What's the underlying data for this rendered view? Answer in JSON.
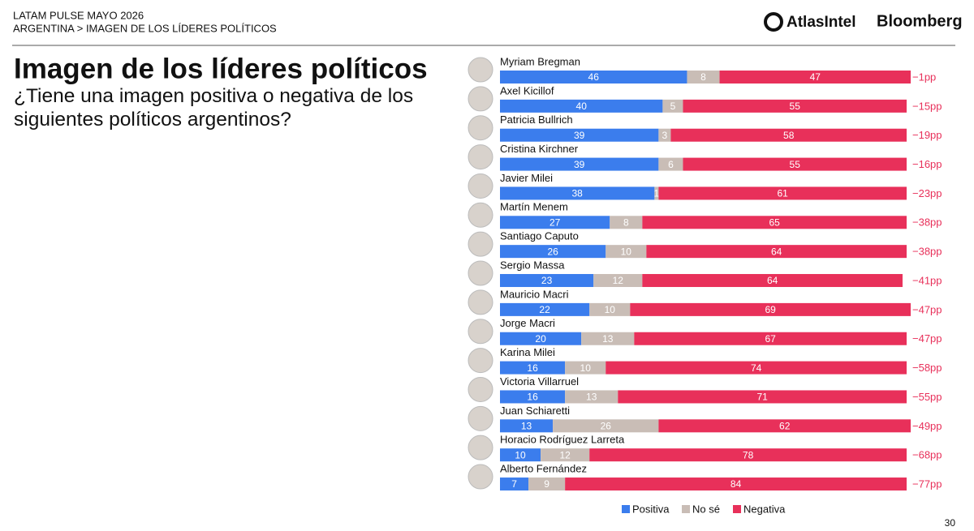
{
  "header": {
    "kicker": "LATAM PULSE MAYO 2026",
    "breadcrumb": "ARGENTINA > IMAGEN DE LOS LÍDERES POLÍTICOS",
    "brands": [
      "AtlasIntel",
      "Bloomberg"
    ]
  },
  "page_number": "30",
  "chart_data": {
    "type": "stacked-bar-horizontal",
    "title": "Imagen de los líderes políticos",
    "subtitle": "¿Tiene una imagen positiva o negativa de los siguientes políticos argentinos?",
    "categories": [
      "Myriam Bregman",
      "Axel Kicillof",
      "Patricia Bullrich",
      "Cristina Kirchner",
      "Javier Milei",
      "Martín Menem",
      "Santiago Caputo",
      "Sergio Massa",
      "Mauricio Macri",
      "Jorge Macri",
      "Karina Milei",
      "Victoria Villarruel",
      "Juan Schiaretti",
      "Horacio Rodríguez Larreta",
      "Alberto Fernández"
    ],
    "xlim": [
      0,
      100
    ],
    "series": [
      {
        "name": "Positiva",
        "color": "#3b7ded",
        "values": [
          46,
          40,
          39,
          39,
          38,
          27,
          26,
          23,
          22,
          20,
          16,
          16,
          13,
          10,
          7
        ]
      },
      {
        "name": "No sé",
        "color": "#c9bdb6",
        "values": [
          8,
          5,
          3,
          6,
          1,
          8,
          10,
          12,
          10,
          13,
          10,
          13,
          26,
          12,
          9
        ]
      },
      {
        "name": "Negativa",
        "color": "#e8305a",
        "values": [
          47,
          55,
          58,
          55,
          61,
          65,
          64,
          64,
          69,
          67,
          74,
          71,
          62,
          78,
          84
        ]
      }
    ],
    "net_labels": [
      "−1pp",
      "−15pp",
      "−19pp",
      "−16pp",
      "−23pp",
      "−38pp",
      "−38pp",
      "−41pp",
      "−47pp",
      "−47pp",
      "−58pp",
      "−55pp",
      "−49pp",
      "−68pp",
      "−77pp"
    ],
    "legend": "bottom"
  }
}
